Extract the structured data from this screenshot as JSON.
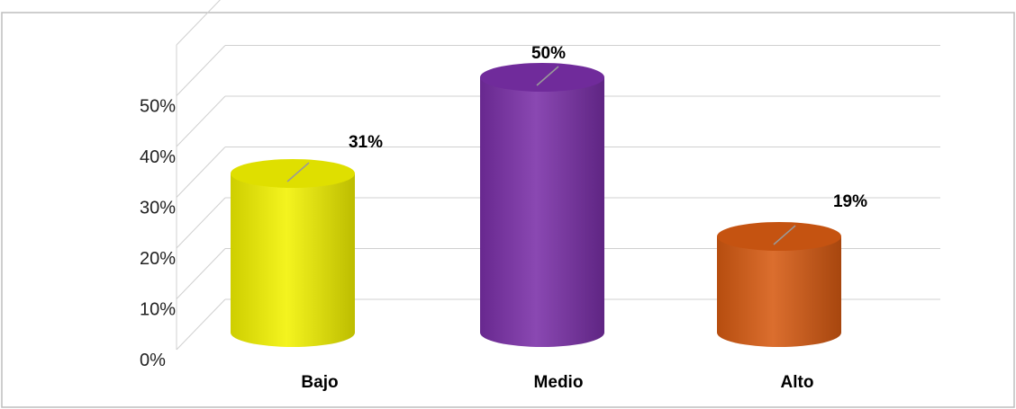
{
  "chart_data": {
    "type": "bar",
    "style": "3d-cylinder",
    "categories": [
      "Bajo",
      "Medio",
      "Alto"
    ],
    "values": [
      31,
      50,
      19
    ],
    "value_labels": [
      "31%",
      "50%",
      "19%"
    ],
    "ylim": [
      0,
      50
    ],
    "y_ticks": [
      "0%",
      "10%",
      "20%",
      "30%",
      "40%",
      "50%"
    ],
    "grid": true,
    "legend": "none",
    "colors": [
      "#f2f200",
      "#7a2fa8",
      "#d65a12"
    ]
  }
}
